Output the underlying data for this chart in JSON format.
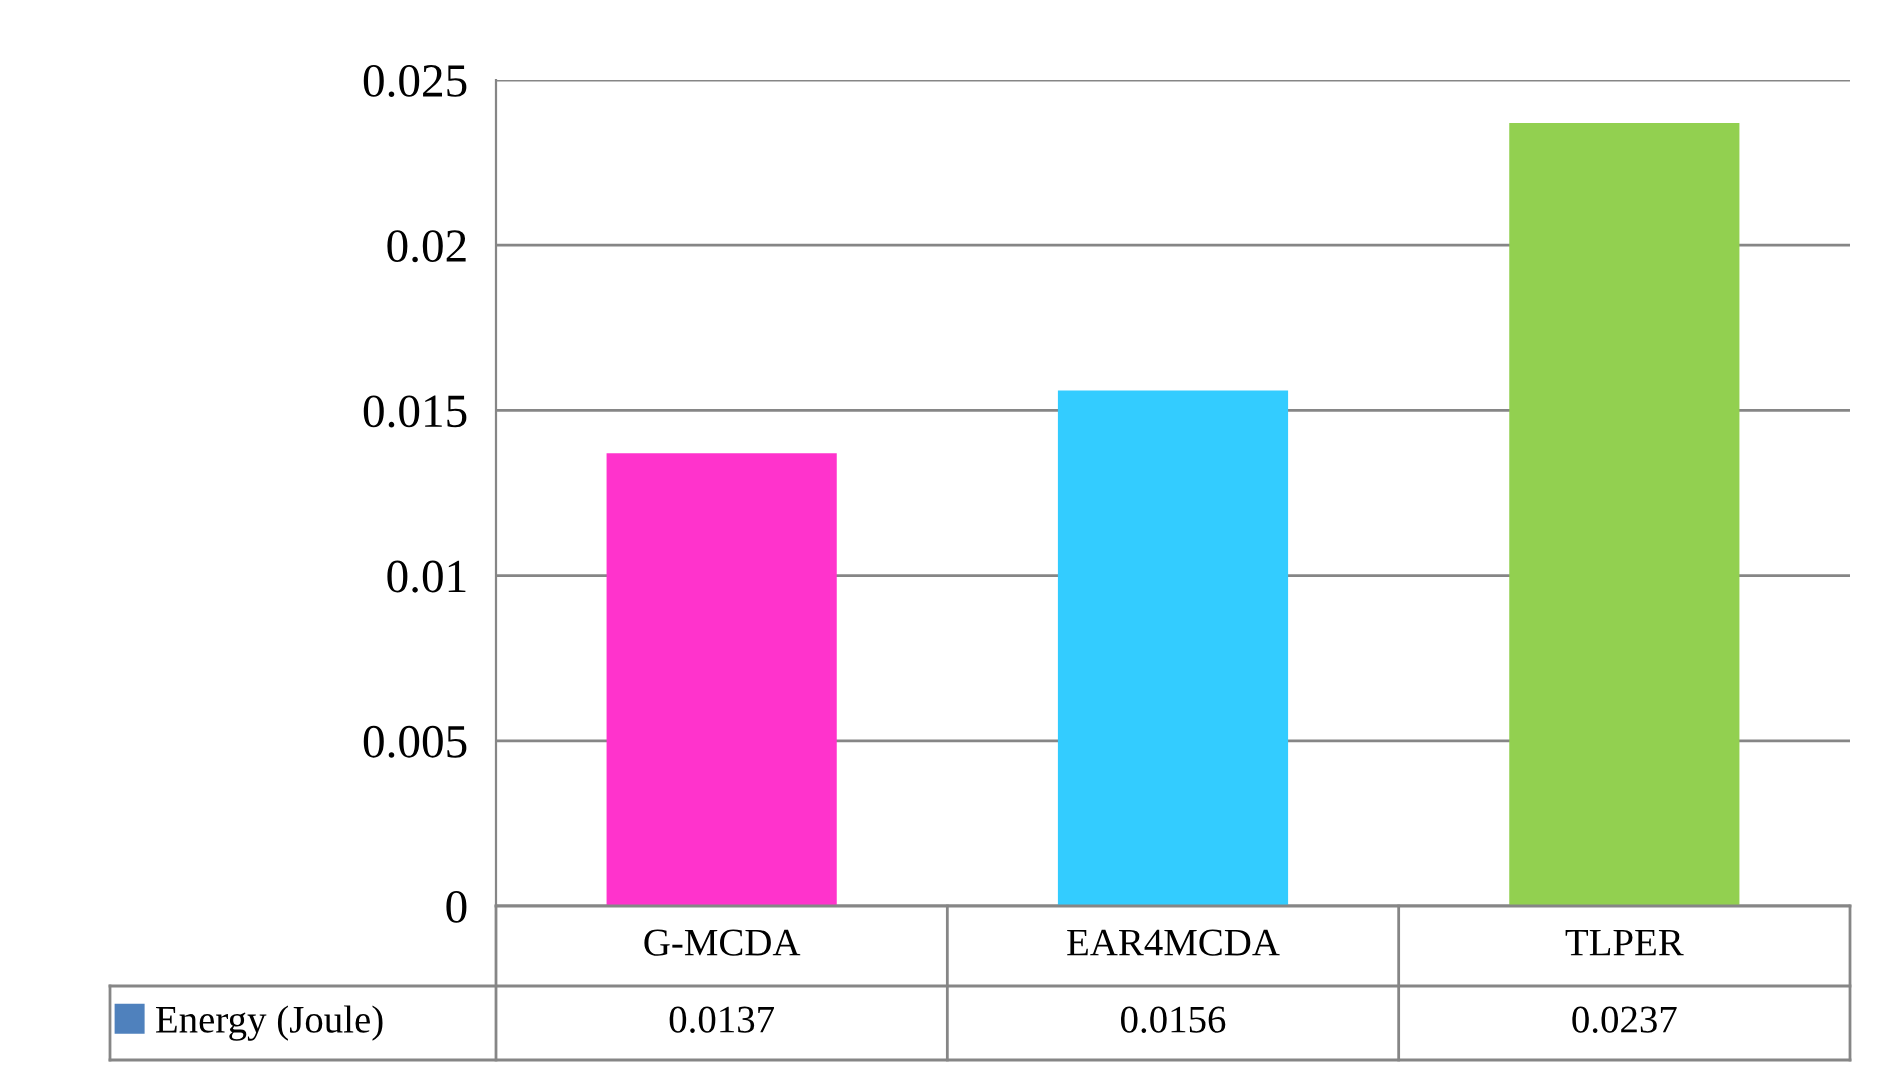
{
  "chart_data": {
    "type": "bar",
    "categories": [
      "G-MCDA",
      "EAR4MCDA",
      "TLPER"
    ],
    "series": [
      {
        "name": "Energy (Joule)",
        "color": "#4f81bd",
        "colors": [
          "#ff33cc",
          "#33ccff",
          "#92d050"
        ],
        "values": [
          0.0137,
          0.0156,
          0.0237
        ]
      }
    ],
    "ylim": [
      0,
      0.025
    ],
    "yticks": [
      0,
      0.005,
      0.01,
      0.015,
      0.02,
      0.025
    ],
    "grid": "y",
    "legend": "bottom",
    "data_labels": true
  }
}
